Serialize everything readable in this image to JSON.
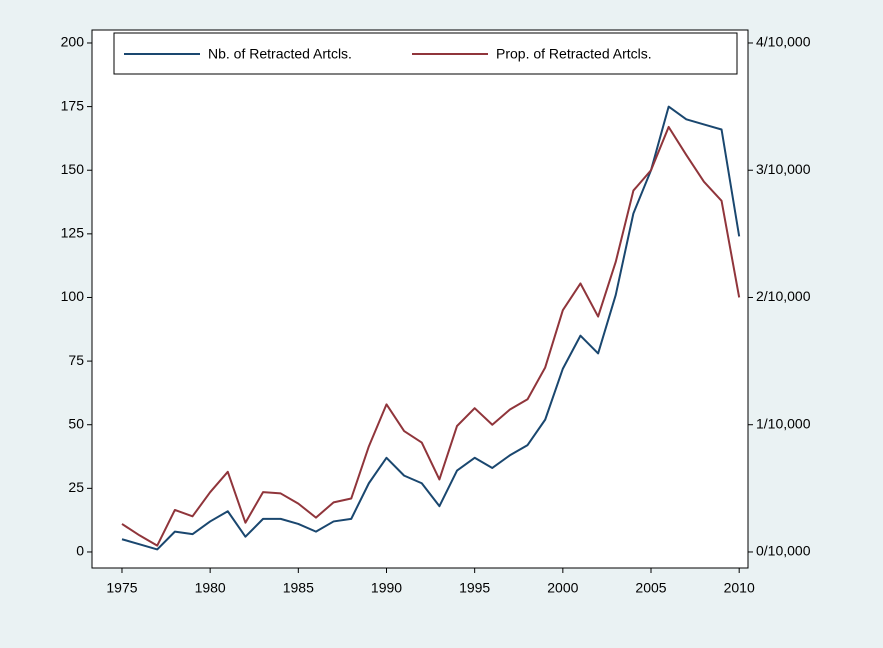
{
  "chart_data": {
    "type": "line",
    "x": [
      1975,
      1976,
      1977,
      1978,
      1979,
      1980,
      1981,
      1982,
      1983,
      1984,
      1985,
      1986,
      1987,
      1988,
      1989,
      1990,
      1991,
      1992,
      1993,
      1994,
      1995,
      1996,
      1997,
      1998,
      1999,
      2000,
      2001,
      2002,
      2003,
      2004,
      2005,
      2006,
      2007,
      2008,
      2009,
      2010
    ],
    "series": [
      {
        "name": "Nb. of Retracted Artcls.",
        "color": "#1a476f",
        "values": [
          5,
          3,
          1,
          8,
          7,
          12,
          16,
          6,
          13,
          13,
          11,
          8,
          12,
          13,
          27,
          37,
          30,
          27,
          18,
          32,
          37,
          33,
          38,
          42,
          52,
          72,
          85,
          78,
          101,
          133,
          150,
          175,
          170,
          168,
          166,
          124
        ]
      },
      {
        "name": "Prop. of Retracted Artcls.",
        "color": "#90353b",
        "axis": "y2",
        "values": [
          0.22,
          0.13,
          0.05,
          0.33,
          0.28,
          0.47,
          0.63,
          0.23,
          0.47,
          0.46,
          0.38,
          0.27,
          0.39,
          0.42,
          0.83,
          1.16,
          0.95,
          0.86,
          0.57,
          0.99,
          1.13,
          1.0,
          1.12,
          1.2,
          1.45,
          1.9,
          2.11,
          1.85,
          2.28,
          2.84,
          3.0,
          3.34,
          3.12,
          2.91,
          2.76,
          2.0
        ]
      }
    ],
    "xlim": [
      1973.3,
      2010.5
    ],
    "xticks": [
      1975,
      1980,
      1985,
      1990,
      1995,
      2000,
      2005,
      2010
    ],
    "ylim": [
      -6.3,
      205.1
    ],
    "yticks": [
      0,
      25,
      50,
      75,
      100,
      125,
      150,
      175,
      200
    ],
    "y2lim": [
      -0.126,
      4.102
    ],
    "y2ticks": [
      {
        "value": 0,
        "label": "0/10,000"
      },
      {
        "value": 1,
        "label": "1/10,000"
      },
      {
        "value": 2,
        "label": "2/10,000"
      },
      {
        "value": 3,
        "label": "3/10,000"
      },
      {
        "value": 4,
        "label": "4/10,000"
      }
    ]
  }
}
